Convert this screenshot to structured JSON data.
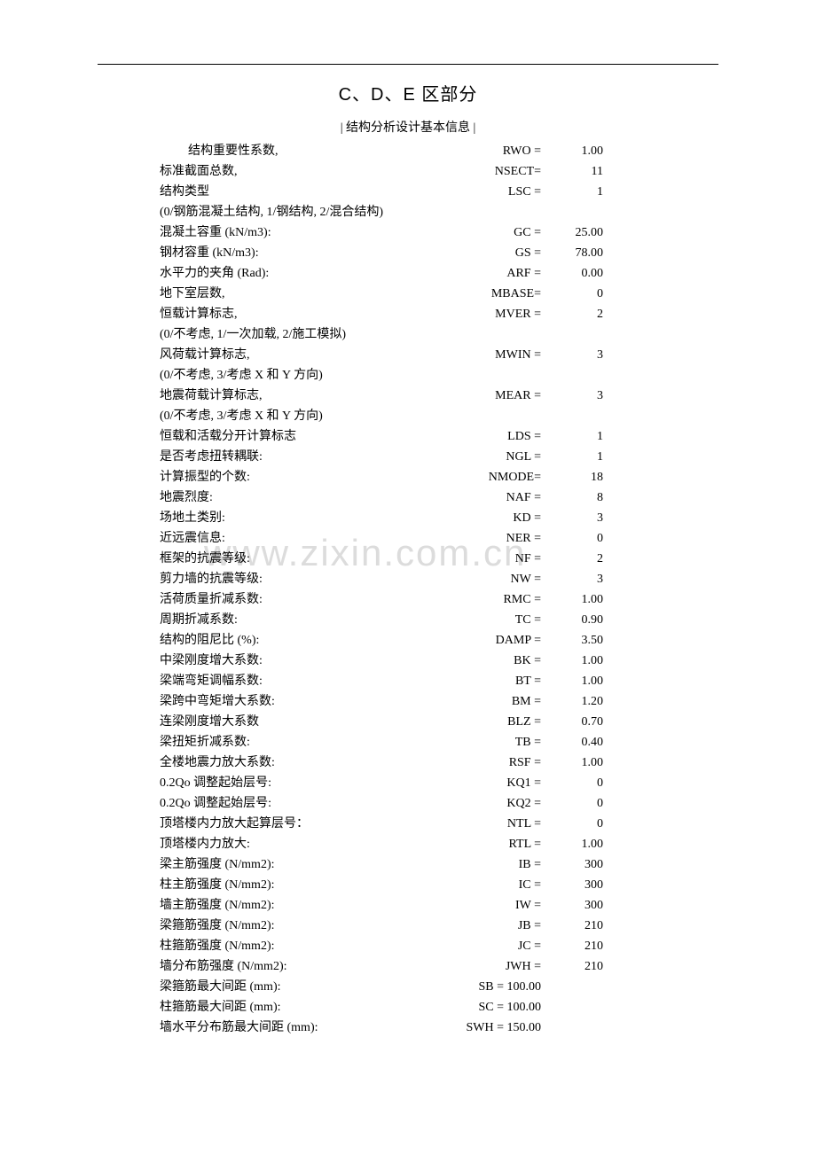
{
  "title": "C、D、E 区部分",
  "section_header": "|                         结构分析设计基本信息                                                  |",
  "watermark": "www.zixin.com.cn",
  "rows": [
    {
      "label": "　结构重要性系数,",
      "var": "RWO =",
      "val": "1.00",
      "indent": true
    },
    {
      "label": "标准截面总数,",
      "var": "NSECT=",
      "val": "11"
    },
    {
      "label": "结构类型",
      "var": "LSC =",
      "val": "1"
    },
    {
      "label": "(0/钢筋混凝土结构, 1/钢结构, 2/混合结构)",
      "note": true
    },
    {
      "label": "混凝土容重  (kN/m3):",
      "var": "GC =",
      "val": "25.00"
    },
    {
      "label": "钢材容重  (kN/m3):",
      "var": "GS =",
      "val": "78.00"
    },
    {
      "label": "水平力的夹角  (Rad):",
      "var": "ARF =",
      "val": "0.00"
    },
    {
      "label": "地下室层数,",
      "var": "MBASE=",
      "val": "0"
    },
    {
      "label": "恒载计算标志,",
      "var": "MVER =",
      "val": "2"
    },
    {
      "label": "(0/不考虑, 1/一次加载, 2/施工模拟)",
      "note": true
    },
    {
      "label": "风荷载计算标志,",
      "var": "MWIN =",
      "val": "3"
    },
    {
      "label": "(0/不考虑, 3/考虑 X 和 Y 方向)",
      "note": true
    },
    {
      "label": "地震荷载计算标志,",
      "var": "MEAR =",
      "val": "3"
    },
    {
      "label": "(0/不考虑, 3/考虑 X 和 Y 方向)",
      "note": true
    },
    {
      "label": "恒载和活载分开计算标志",
      "var": "LDS =",
      "val": "1"
    },
    {
      "label": "是否考虑扭转耦联:",
      "var": "NGL =",
      "val": "1"
    },
    {
      "label": "计算振型的个数:",
      "var": "NMODE=",
      "val": "18"
    },
    {
      "label": "地震烈度:",
      "var": "NAF =",
      "val": "8"
    },
    {
      "label": "场地土类别:",
      "var": "KD =",
      "val": "3"
    },
    {
      "label": "近远震信息:",
      "var": "NER =",
      "val": "0"
    },
    {
      "label": "框架的抗震等级:",
      "var": "NF =",
      "val": "2"
    },
    {
      "label": "剪力墙的抗震等级:",
      "var": "NW =",
      "val": "3"
    },
    {
      "label": "活荷质量折减系数:",
      "var": "RMC =",
      "val": "1.00"
    },
    {
      "label": "周期折减系数:",
      "var": "TC =",
      "val": "0.90"
    },
    {
      "label": "结构的阻尼比  (%):",
      "var": "DAMP =",
      "val": "3.50"
    },
    {
      "label": "中梁刚度增大系数:",
      "var": "BK =",
      "val": "1.00"
    },
    {
      "label": "梁端弯矩调幅系数:",
      "var": "BT =",
      "val": "1.00"
    },
    {
      "label": "梁跨中弯矩增大系数:",
      "var": "BM =",
      "val": "1.20"
    },
    {
      "label": "连梁刚度增大系数",
      "var": "BLZ =",
      "val": "0.70"
    },
    {
      "label": "梁扭矩折减系数:",
      "var": "TB =",
      "val": "0.40"
    },
    {
      "label": "全楼地震力放大系数:",
      "var": "RSF =",
      "val": "1.00"
    },
    {
      "label": "0.2Qo  调整起始层号:",
      "var": "KQ1 =",
      "val": "0"
    },
    {
      "label": "0.2Qo  调整起始层号:",
      "var": "KQ2 =",
      "val": "0"
    },
    {
      "label": "顶塔楼内力放大起算层号：",
      "var": "NTL =",
      "val": "0"
    },
    {
      "label": "顶塔楼内力放大:",
      "var": "RTL =",
      "val": "1.00"
    },
    {
      "label": "梁主筋强度  (N/mm2):",
      "var": "IB =",
      "val": "300"
    },
    {
      "label": "柱主筋强度  (N/mm2):",
      "var": "IC =",
      "val": "300"
    },
    {
      "label": "墙主筋强度  (N/mm2):",
      "var": "IW =",
      "val": "300"
    },
    {
      "label": "梁箍筋强度  (N/mm2):",
      "var": "JB =",
      "val": "210"
    },
    {
      "label": "柱箍筋强度  (N/mm2):",
      "var": "JC =",
      "val": "210"
    },
    {
      "label": "墙分布筋强度  (N/mm2):",
      "var": "JWH =",
      "val": "210"
    },
    {
      "label": "梁箍筋最大间距  (mm):",
      "var": "SB = 100.00",
      "val": ""
    },
    {
      "label": "柱箍筋最大间距  (mm):",
      "var": "SC = 100.00",
      "val": ""
    },
    {
      "label": "墙水平分布筋最大间距  (mm):",
      "var": "SWH = 150.00",
      "val": ""
    }
  ]
}
